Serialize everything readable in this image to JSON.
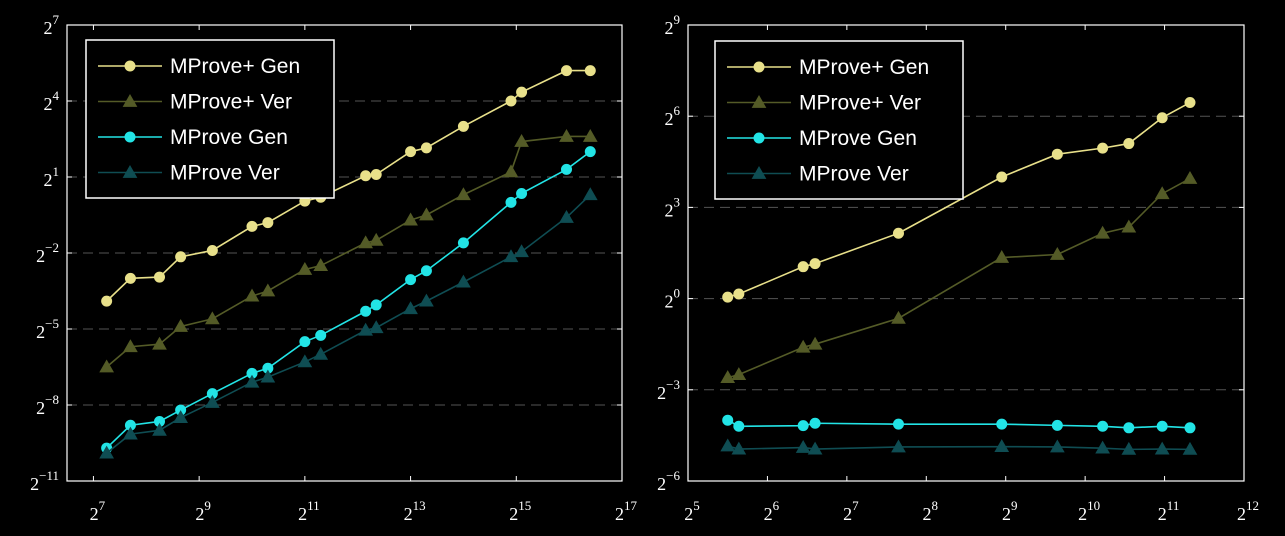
{
  "chart_data": [
    {
      "type": "line",
      "xscale": "log2",
      "yscale": "log2",
      "xlim_exp": [
        6.5,
        17
      ],
      "ylim_exp": [
        -11,
        7
      ],
      "xticks": [
        {
          "base": "2",
          "exp": "7",
          "value": 7
        },
        {
          "base": "2",
          "exp": "9",
          "value": 9
        },
        {
          "base": "2",
          "exp": "11",
          "value": 11
        },
        {
          "base": "2",
          "exp": "13",
          "value": 13
        },
        {
          "base": "2",
          "exp": "15",
          "value": 15
        },
        {
          "base": "2",
          "exp": "17",
          "value": 17
        }
      ],
      "yticks": [
        {
          "base": "2",
          "exp": "−11",
          "value": -11
        },
        {
          "base": "2",
          "exp": "−8",
          "value": -8
        },
        {
          "base": "2",
          "exp": "−5",
          "value": -5
        },
        {
          "base": "2",
          "exp": "−2",
          "value": -2
        },
        {
          "base": "2",
          "exp": "1",
          "value": 1
        },
        {
          "base": "2",
          "exp": "4",
          "value": 4
        },
        {
          "base": "2",
          "exp": "7",
          "value": 7
        }
      ],
      "grid": "horizontal dashed",
      "legend": "top-left",
      "series": [
        {
          "name": "MProve+ Gen",
          "marker": "circle",
          "color": "#e8e08a",
          "x_exp": [
            7.25,
            7.7,
            8.25,
            8.65,
            9.25,
            10.0,
            10.3,
            11.0,
            11.3,
            12.15,
            12.35,
            13.0,
            13.3,
            14.0,
            14.9,
            15.1,
            15.95,
            16.4
          ],
          "y_exp": [
            -3.9,
            -3.0,
            -2.95,
            -2.15,
            -1.9,
            -0.95,
            -0.8,
            0.05,
            0.2,
            1.05,
            1.1,
            2.0,
            2.15,
            3.0,
            4.0,
            4.35,
            5.2,
            5.2
          ]
        },
        {
          "name": "MProve+ Ver",
          "marker": "triangle",
          "color": "#545b27",
          "x_exp": [
            7.25,
            7.7,
            8.25,
            8.65,
            9.25,
            10.0,
            10.3,
            11.0,
            11.3,
            12.15,
            12.35,
            13.0,
            13.3,
            14.0,
            14.9,
            15.1,
            15.95,
            16.4
          ],
          "y_exp": [
            -6.5,
            -5.7,
            -5.6,
            -4.9,
            -4.6,
            -3.7,
            -3.5,
            -2.65,
            -2.5,
            -1.6,
            -1.5,
            -0.7,
            -0.5,
            0.3,
            1.2,
            2.4,
            2.6,
            2.6
          ]
        },
        {
          "name": "MProve Gen",
          "marker": "circle",
          "color": "#22e4e6",
          "x_exp": [
            7.25,
            7.7,
            8.25,
            8.65,
            9.25,
            10.0,
            10.3,
            11.0,
            11.3,
            12.15,
            12.35,
            13.0,
            13.3,
            14.0,
            14.9,
            15.1,
            15.95,
            16.4
          ],
          "y_exp": [
            -9.7,
            -8.8,
            -8.65,
            -8.2,
            -7.55,
            -6.75,
            -6.55,
            -5.5,
            -5.25,
            -4.3,
            -4.05,
            -3.05,
            -2.7,
            -1.6,
            0.0,
            0.35,
            1.3,
            2.0
          ]
        },
        {
          "name": "MProve Ver",
          "marker": "triangle",
          "color": "#0f4d53",
          "x_exp": [
            7.25,
            7.7,
            8.25,
            8.65,
            9.25,
            10.0,
            10.3,
            11.0,
            11.3,
            12.15,
            12.35,
            13.0,
            13.3,
            14.0,
            14.9,
            15.1,
            15.95,
            16.4
          ],
          "y_exp": [
            -9.9,
            -9.15,
            -9.0,
            -8.5,
            -7.9,
            -7.1,
            -6.9,
            -6.3,
            -6.0,
            -5.05,
            -4.95,
            -4.2,
            -3.9,
            -3.15,
            -2.15,
            -1.95,
            -0.6,
            0.3
          ]
        }
      ]
    },
    {
      "type": "line",
      "xscale": "log2",
      "yscale": "log2",
      "xlim_exp": [
        5,
        12
      ],
      "ylim_exp": [
        -6,
        9
      ],
      "xticks": [
        {
          "base": "2",
          "exp": "5",
          "value": 5
        },
        {
          "base": "2",
          "exp": "6",
          "value": 6
        },
        {
          "base": "2",
          "exp": "7",
          "value": 7
        },
        {
          "base": "2",
          "exp": "8",
          "value": 8
        },
        {
          "base": "2",
          "exp": "9",
          "value": 9
        },
        {
          "base": "2",
          "exp": "10",
          "value": 10
        },
        {
          "base": "2",
          "exp": "11",
          "value": 11
        },
        {
          "base": "2",
          "exp": "12",
          "value": 12
        }
      ],
      "yticks": [
        {
          "base": "2",
          "exp": "−6",
          "value": -6
        },
        {
          "base": "2",
          "exp": "−3",
          "value": -3
        },
        {
          "base": "2",
          "exp": "0",
          "value": 0
        },
        {
          "base": "2",
          "exp": "3",
          "value": 3
        },
        {
          "base": "2",
          "exp": "6",
          "value": 6
        },
        {
          "base": "2",
          "exp": "9",
          "value": 9
        }
      ],
      "grid": "horizontal dashed",
      "legend": "top-left",
      "series": [
        {
          "name": "MProve+ Gen",
          "marker": "circle",
          "color": "#e8e08a",
          "x_exp": [
            5.5,
            5.64,
            6.45,
            6.6,
            7.65,
            8.95,
            9.65,
            10.22,
            10.55,
            10.97,
            11.32
          ],
          "y_exp": [
            0.05,
            0.15,
            1.05,
            1.15,
            2.15,
            4.0,
            4.75,
            4.95,
            5.1,
            5.95,
            6.45
          ]
        },
        {
          "name": "MProve+ Ver",
          "marker": "triangle",
          "color": "#545b27",
          "x_exp": [
            5.5,
            5.64,
            6.45,
            6.6,
            7.65,
            8.95,
            9.65,
            10.22,
            10.55,
            10.97,
            11.32
          ],
          "y_exp": [
            -2.6,
            -2.5,
            -1.6,
            -1.5,
            -0.65,
            1.35,
            1.45,
            2.15,
            2.35,
            3.45,
            3.95
          ]
        },
        {
          "name": "MProve Gen",
          "marker": "circle",
          "color": "#22e4e6",
          "x_exp": [
            5.5,
            5.64,
            6.45,
            6.6,
            7.65,
            8.95,
            9.65,
            10.22,
            10.55,
            10.97,
            11.32
          ],
          "y_exp": [
            -4.0,
            -4.2,
            -4.18,
            -4.1,
            -4.13,
            -4.13,
            -4.17,
            -4.2,
            -4.25,
            -4.2,
            -4.25
          ]
        },
        {
          "name": "MProve Ver",
          "marker": "triangle",
          "color": "#0f4d53",
          "x_exp": [
            5.5,
            5.64,
            6.45,
            6.6,
            7.65,
            8.95,
            9.65,
            10.22,
            10.55,
            10.97,
            11.32
          ],
          "y_exp": [
            -4.85,
            -4.95,
            -4.9,
            -4.95,
            -4.88,
            -4.87,
            -4.88,
            -4.92,
            -4.96,
            -4.95,
            -4.96
          ]
        }
      ]
    }
  ]
}
